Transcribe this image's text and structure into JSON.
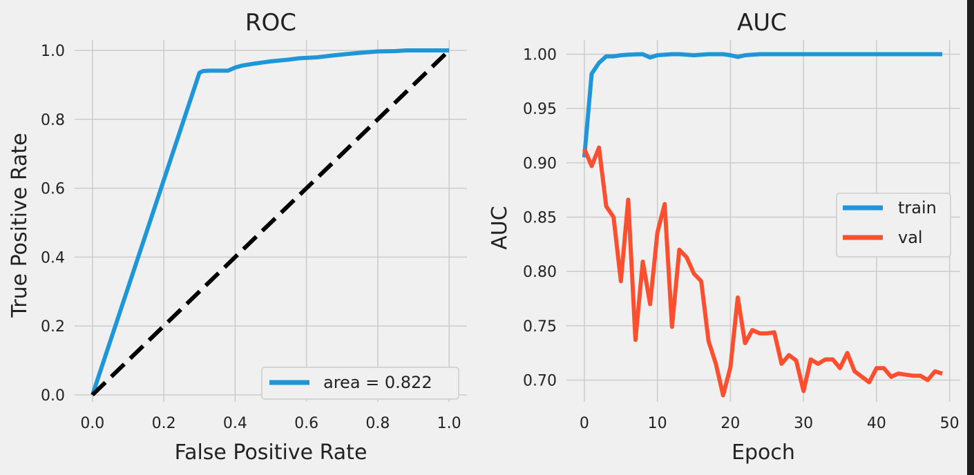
{
  "colors": {
    "background": "#f0f0f0",
    "grid": "#cbcbcb",
    "train": "#1f96d8",
    "val": "#fc4f30",
    "diagonal": "#000000"
  },
  "chart_data": [
    {
      "type": "line",
      "title": "ROC",
      "xlabel": "False Positive Rate",
      "ylabel": "True Positive Rate",
      "xlim": [
        -0.05,
        1.05
      ],
      "ylim": [
        -0.02,
        1.03
      ],
      "xticks": [
        "0.0",
        "0.2",
        "0.4",
        "0.6",
        "0.8",
        "1.0"
      ],
      "yticks": [
        "0.0",
        "0.2",
        "0.4",
        "0.6",
        "0.8",
        "1.0"
      ],
      "grid": true,
      "legend_position": "lower-right",
      "series": [
        {
          "name": "area = 0.822",
          "color": "#1f96d8",
          "style": "solid",
          "x": [
            0.0,
            0.3,
            0.31,
            0.33,
            0.38,
            0.4,
            0.42,
            0.45,
            0.5,
            0.55,
            0.58,
            0.63,
            0.68,
            0.75,
            0.8,
            0.85,
            0.88,
            1.0
          ],
          "y": [
            0.0,
            0.935,
            0.94,
            0.941,
            0.941,
            0.95,
            0.956,
            0.961,
            0.968,
            0.973,
            0.977,
            0.98,
            0.986,
            0.993,
            0.997,
            0.998,
            1.0,
            1.0
          ]
        },
        {
          "name": "",
          "color": "#000000",
          "style": "dashed",
          "x": [
            0.0,
            1.0
          ],
          "y": [
            0.0,
            1.0
          ]
        }
      ]
    },
    {
      "type": "line",
      "title": "AUC",
      "xlabel": "Epoch",
      "ylabel": "AUC",
      "xlim": [
        -2.45,
        51.45
      ],
      "ylim": [
        0.68,
        1.013
      ],
      "xticks": [
        "0",
        "10",
        "20",
        "30",
        "40",
        "50"
      ],
      "yticks": [
        "0.70",
        "0.75",
        "0.80",
        "0.85",
        "0.90",
        "0.95",
        "1.00"
      ],
      "grid": true,
      "legend_position": "center-right",
      "x": [
        0,
        1,
        2,
        3,
        4,
        5,
        6,
        7,
        8,
        9,
        10,
        11,
        12,
        13,
        14,
        15,
        16,
        17,
        18,
        19,
        20,
        21,
        22,
        23,
        24,
        25,
        26,
        27,
        28,
        29,
        30,
        31,
        32,
        33,
        34,
        35,
        36,
        37,
        38,
        39,
        40,
        41,
        42,
        43,
        44,
        45,
        46,
        47,
        48,
        49
      ],
      "series": [
        {
          "name": "train",
          "color": "#1f96d8",
          "values": [
            0.905,
            0.982,
            0.992,
            0.998,
            0.998,
            0.999,
            0.9995,
            0.9998,
            1.0,
            0.997,
            0.999,
            0.9995,
            1.0,
            1.0,
            0.9995,
            0.999,
            0.9995,
            1.0,
            1.0,
            1.0,
            0.999,
            0.9975,
            0.999,
            0.9995,
            1.0,
            1.0,
            1.0,
            1.0,
            1.0,
            1.0,
            1.0,
            1.0,
            1.0,
            1.0,
            1.0,
            1.0,
            1.0,
            1.0,
            1.0,
            1.0,
            1.0,
            1.0,
            1.0,
            1.0,
            1.0,
            1.0,
            1.0,
            1.0,
            1.0,
            1.0
          ]
        },
        {
          "name": "val",
          "color": "#fc4f30",
          "values": [
            0.913,
            0.897,
            0.914,
            0.86,
            0.85,
            0.791,
            0.866,
            0.737,
            0.809,
            0.77,
            0.836,
            0.862,
            0.749,
            0.82,
            0.813,
            0.798,
            0.791,
            0.736,
            0.715,
            0.686,
            0.712,
            0.776,
            0.734,
            0.746,
            0.743,
            0.743,
            0.744,
            0.715,
            0.723,
            0.718,
            0.69,
            0.719,
            0.715,
            0.719,
            0.719,
            0.711,
            0.725,
            0.708,
            0.703,
            0.698,
            0.711,
            0.711,
            0.703,
            0.706,
            0.705,
            0.704,
            0.704,
            0.7,
            0.708,
            0.706
          ]
        }
      ]
    }
  ]
}
